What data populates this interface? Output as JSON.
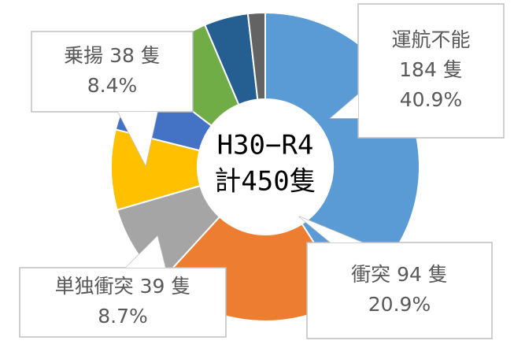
{
  "chart_data": {
    "type": "donut",
    "center_label": [
      "H30−R4",
      "計450隻"
    ],
    "categories": [
      "運航不能",
      "衝突",
      "単独衝突",
      "乗揚",
      null,
      null,
      null,
      null
    ],
    "values": [
      40.9,
      20.9,
      8.7,
      8.4,
      6.5,
      8.2,
      4.6,
      1.8
    ],
    "value_labels": [
      "40.9%",
      "20.9%",
      "8.7%",
      "8.4%",
      null,
      null,
      null,
      null
    ],
    "counts": [
      184,
      94,
      39,
      38,
      null,
      null,
      null,
      null
    ],
    "count_labels": [
      "184 隻",
      "94 隻",
      "39 隻",
      "38 隻",
      null,
      null,
      null,
      null
    ],
    "colors": [
      "#5b9bd5",
      "#ed7d31",
      "#a5a5a5",
      "#ffc000",
      "#4472c4",
      "#70ad47",
      "#255e91",
      "#636363"
    ]
  }
}
